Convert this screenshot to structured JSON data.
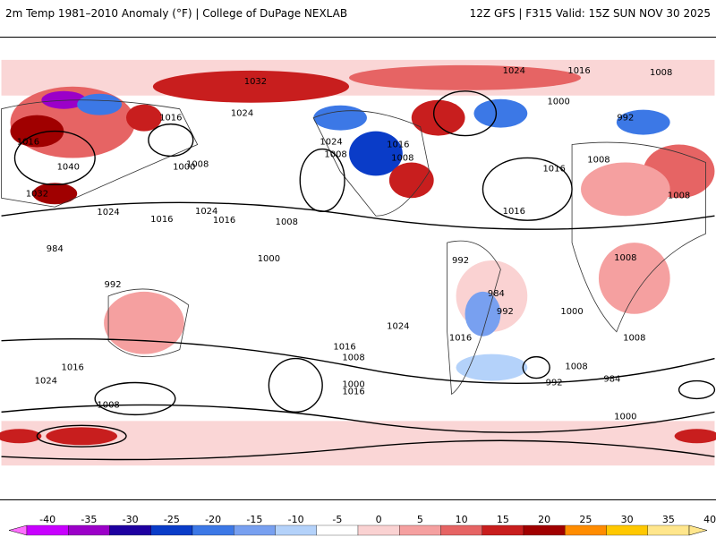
{
  "header": {
    "title": "2m Temp 1981–2010 Anomaly (°F) | College of DuPage NEXLAB",
    "run_info": "12Z GFS | F315 Valid: 15Z SUN NOV 30 2025"
  },
  "map": {
    "pressure_labels": [
      "1032",
      "1024",
      "1024",
      "1016",
      "1008",
      "1000",
      "992",
      "984",
      "1040",
      "1016",
      "1024",
      "1032",
      "1016",
      "1024",
      "1008",
      "1016",
      "1008",
      "1000",
      "992",
      "1016",
      "1008",
      "1008",
      "1016",
      "1008",
      "1008",
      "1016",
      "1024",
      "1016",
      "1008",
      "1000",
      "992",
      "984",
      "992",
      "1000",
      "1008",
      "1016",
      "1024",
      "1016",
      "1008",
      "1000",
      "1016",
      "1008",
      "992",
      "984",
      "1000",
      "1008",
      "1016",
      "1024"
    ]
  },
  "colorbar": {
    "ticks": [
      "-40",
      "-35",
      "-30",
      "-25",
      "-20",
      "-15",
      "-10",
      "-5",
      "0",
      "5",
      "10",
      "15",
      "20",
      "25",
      "30",
      "35",
      "40"
    ],
    "colors": [
      "#ff6eff",
      "#c800ff",
      "#9b00c8",
      "#1e00a0",
      "#0a3cc8",
      "#3c78e6",
      "#78a0f0",
      "#b4d2fa",
      "#ffffff",
      "#fad2d2",
      "#f5a0a0",
      "#e66464",
      "#c81e1e",
      "#a00000",
      "#ff8c00",
      "#ffc800",
      "#ffe68c"
    ]
  }
}
